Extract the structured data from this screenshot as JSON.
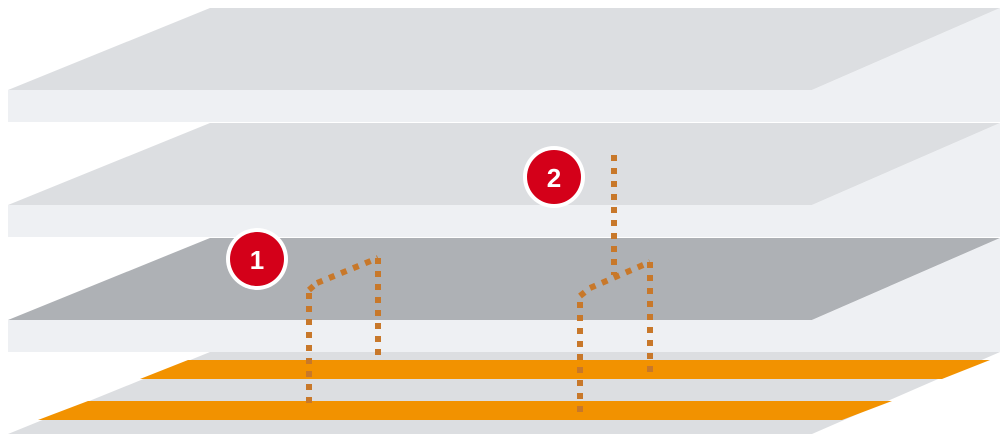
{
  "colors": {
    "layer_top": "#dcdee1",
    "layer_edge": "#eef0f3",
    "layer_highlight": "#aeb1b5",
    "trace": "#f29200",
    "via_path": "#c8782a",
    "badge_fill": "#d40019",
    "badge_ring": "#ffffff"
  },
  "badges": [
    {
      "id": "1",
      "label": "1"
    },
    {
      "id": "2",
      "label": "2"
    }
  ],
  "icons": {
    "badge": "numbered-circle-marker",
    "path": "dotted-via-path"
  }
}
